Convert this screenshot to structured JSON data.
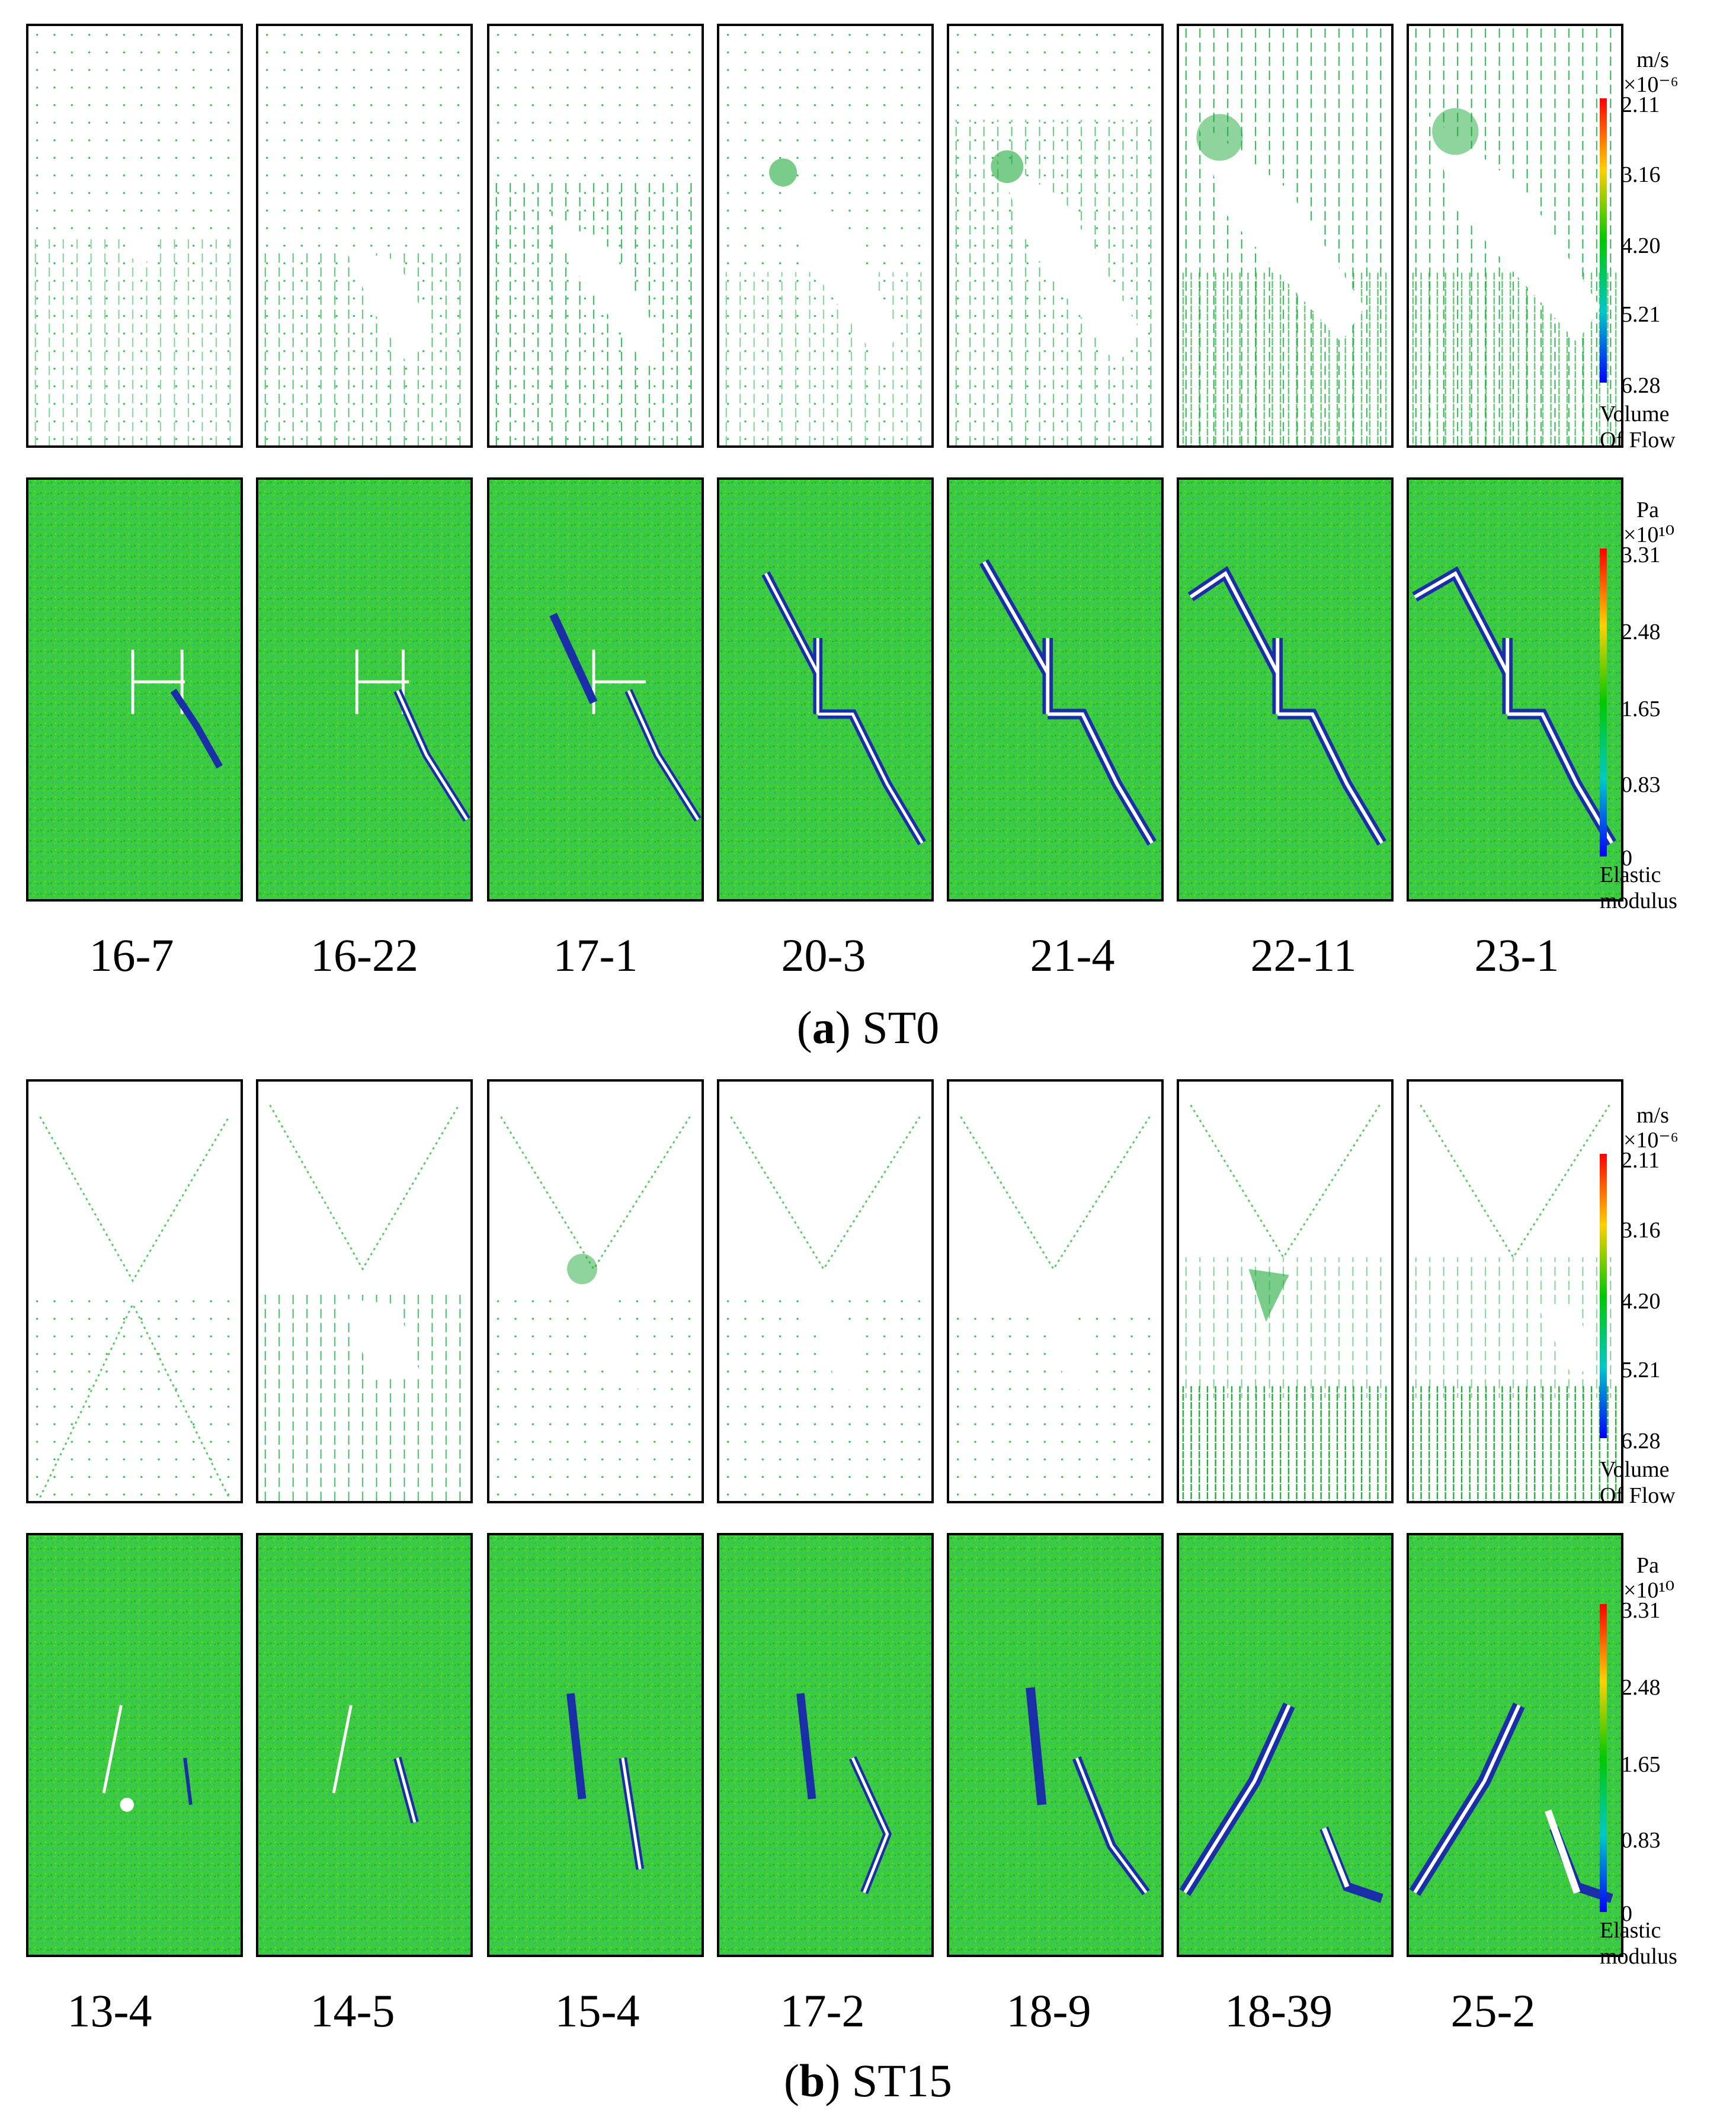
{
  "section_a": {
    "flow_steps": [
      "16-7",
      "16-22",
      "17-1",
      "20-3",
      "21-4",
      "22-11",
      "23-1"
    ],
    "caption_letter": "a",
    "caption_name": "ST0"
  },
  "section_b": {
    "flow_steps": [
      "13-4",
      "14-5",
      "15-4",
      "17-2",
      "18-9",
      "18-39",
      "25-2"
    ],
    "caption_letter": "b",
    "caption_name": "ST15"
  },
  "colorbar_flow": {
    "unit": "m/s",
    "multiplier": "×10⁻⁶",
    "ticks": [
      "2.11",
      "3.16",
      "4.20",
      "5.21",
      "6.28"
    ],
    "name_line1": "Volume",
    "name_line2": "Of Flow"
  },
  "colorbar_modulus": {
    "unit": "Pa",
    "multiplier": "×10¹⁰",
    "ticks": [
      "3.31",
      "2.48",
      "1.65",
      "0.83",
      "0"
    ],
    "name_line1": "Elastic",
    "name_line2": "modulus"
  },
  "colors": {
    "field_green": "#3cc83c",
    "vector_green": "#22b04a",
    "crack_white": "#ffffff",
    "damage_blue": "#1a2ea8",
    "colorbar_stops": [
      "#ff0000",
      "#ffd000",
      "#00c800",
      "#00c8c8",
      "#0000ff"
    ]
  }
}
